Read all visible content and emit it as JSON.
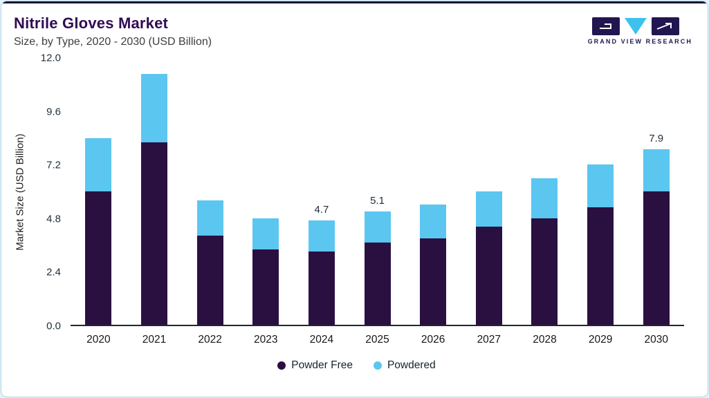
{
  "header": {
    "logo_text": "GRAND VIEW RESEARCH"
  },
  "theme": {
    "title_color": "#2f0c56",
    "card_border": "#aed6ea",
    "page_bg": "#e4f2fa",
    "axis_color": "#21252e",
    "topstrip": "#15152e",
    "logo_navy": "#221650"
  },
  "chart_data": {
    "type": "bar",
    "stacked": true,
    "title": "Nitrile Gloves Market",
    "subtitle": "Size, by Type, 2020 - 2030 (USD Billion)",
    "xlabel": "",
    "ylabel": "Market Size (USD Billion)",
    "ylim": [
      0,
      12
    ],
    "yticks": [
      "0.0",
      "2.4",
      "4.8",
      "7.2",
      "9.6",
      "12.0"
    ],
    "grid": false,
    "legend_position": "bottom",
    "categories": [
      "2020",
      "2021",
      "2022",
      "2023",
      "2024",
      "2025",
      "2026",
      "2027",
      "2028",
      "2029",
      "2030"
    ],
    "series": [
      {
        "name": "Powder Free",
        "color": "#2a1041",
        "values": [
          6.0,
          8.2,
          4.0,
          3.4,
          3.3,
          3.7,
          3.9,
          4.4,
          4.8,
          5.3,
          6.0
        ]
      },
      {
        "name": "Powdered",
        "color": "#5bc6f0",
        "values": [
          2.4,
          3.1,
          1.6,
          1.4,
          1.4,
          1.4,
          1.5,
          1.6,
          1.8,
          1.9,
          1.9
        ]
      }
    ],
    "point_labels": [
      "",
      "",
      "",
      "",
      "4.7",
      "5.1",
      "",
      "",
      "",
      "",
      "7.9"
    ]
  }
}
